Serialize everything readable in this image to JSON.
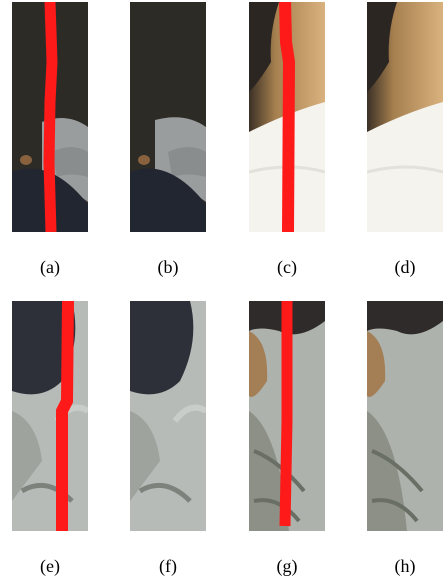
{
  "figure": {
    "captions": [
      "(a)",
      "(b)",
      "(c)",
      "(d)",
      "(e)",
      "(f)",
      "(g)",
      "(h)"
    ]
  }
}
